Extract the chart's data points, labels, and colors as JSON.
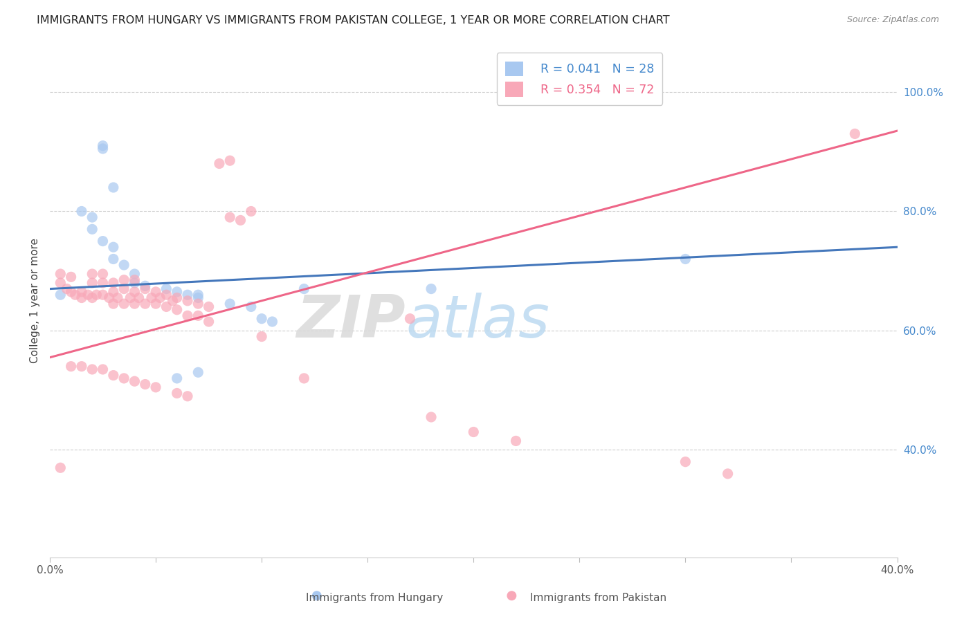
{
  "title": "IMMIGRANTS FROM HUNGARY VS IMMIGRANTS FROM PAKISTAN COLLEGE, 1 YEAR OR MORE CORRELATION CHART",
  "source": "Source: ZipAtlas.com",
  "ylabel": "College, 1 year or more",
  "xlim": [
    0.0,
    0.4
  ],
  "ylim": [
    0.22,
    1.08
  ],
  "x_ticks": [
    0.0,
    0.05,
    0.1,
    0.15,
    0.2,
    0.25,
    0.3,
    0.35,
    0.4
  ],
  "x_tick_labels": [
    "0.0%",
    "",
    "",
    "",
    "",
    "",
    "",
    "",
    "40.0%"
  ],
  "y_ticks_right": [
    0.4,
    0.6,
    0.8,
    1.0
  ],
  "y_tick_labels_right": [
    "40.0%",
    "60.0%",
    "80.0%",
    "100.0%"
  ],
  "hungary_color": "#a8c8f0",
  "pakistan_color": "#f8a8b8",
  "hungary_line_color": "#4477bb",
  "pakistan_line_color": "#ee6688",
  "hungary_R": 0.041,
  "hungary_N": 28,
  "pakistan_R": 0.354,
  "pakistan_N": 72,
  "watermark_zip": "ZIP",
  "watermark_atlas": "atlas",
  "hungary_scatter_x": [
    0.025,
    0.025,
    0.03,
    0.015,
    0.02,
    0.02,
    0.025,
    0.03,
    0.03,
    0.035,
    0.04,
    0.04,
    0.045,
    0.055,
    0.06,
    0.065,
    0.07,
    0.07,
    0.085,
    0.095,
    0.1,
    0.105,
    0.12,
    0.18,
    0.3,
    0.06,
    0.07,
    0.005
  ],
  "hungary_scatter_y": [
    0.91,
    0.905,
    0.84,
    0.8,
    0.79,
    0.77,
    0.75,
    0.74,
    0.72,
    0.71,
    0.695,
    0.68,
    0.675,
    0.67,
    0.665,
    0.66,
    0.66,
    0.655,
    0.645,
    0.64,
    0.62,
    0.615,
    0.67,
    0.67,
    0.72,
    0.52,
    0.53,
    0.66
  ],
  "pakistan_scatter_x": [
    0.005,
    0.005,
    0.008,
    0.01,
    0.01,
    0.012,
    0.015,
    0.015,
    0.018,
    0.02,
    0.02,
    0.02,
    0.022,
    0.025,
    0.025,
    0.025,
    0.028,
    0.03,
    0.03,
    0.03,
    0.032,
    0.035,
    0.035,
    0.035,
    0.038,
    0.04,
    0.04,
    0.04,
    0.042,
    0.045,
    0.045,
    0.048,
    0.05,
    0.05,
    0.052,
    0.055,
    0.055,
    0.058,
    0.06,
    0.06,
    0.065,
    0.065,
    0.07,
    0.07,
    0.075,
    0.075,
    0.08,
    0.085,
    0.085,
    0.09,
    0.095,
    0.1,
    0.12,
    0.17,
    0.18,
    0.005,
    0.01,
    0.015,
    0.02,
    0.025,
    0.03,
    0.035,
    0.04,
    0.045,
    0.05,
    0.06,
    0.065,
    0.2,
    0.22,
    0.3,
    0.32,
    0.38
  ],
  "pakistan_scatter_y": [
    0.695,
    0.68,
    0.67,
    0.69,
    0.665,
    0.66,
    0.665,
    0.655,
    0.66,
    0.695,
    0.68,
    0.655,
    0.66,
    0.695,
    0.68,
    0.66,
    0.655,
    0.68,
    0.665,
    0.645,
    0.655,
    0.685,
    0.67,
    0.645,
    0.655,
    0.685,
    0.665,
    0.645,
    0.655,
    0.67,
    0.645,
    0.655,
    0.665,
    0.645,
    0.655,
    0.66,
    0.64,
    0.65,
    0.655,
    0.635,
    0.65,
    0.625,
    0.645,
    0.625,
    0.64,
    0.615,
    0.88,
    0.885,
    0.79,
    0.785,
    0.8,
    0.59,
    0.52,
    0.62,
    0.455,
    0.37,
    0.54,
    0.54,
    0.535,
    0.535,
    0.525,
    0.52,
    0.515,
    0.51,
    0.505,
    0.495,
    0.49,
    0.43,
    0.415,
    0.38,
    0.36,
    0.93
  ],
  "hungary_trend_x": [
    0.0,
    0.4
  ],
  "hungary_trend_y": [
    0.67,
    0.74
  ],
  "pakistan_trend_x": [
    0.0,
    0.4
  ],
  "pakistan_trend_y": [
    0.555,
    0.935
  ]
}
